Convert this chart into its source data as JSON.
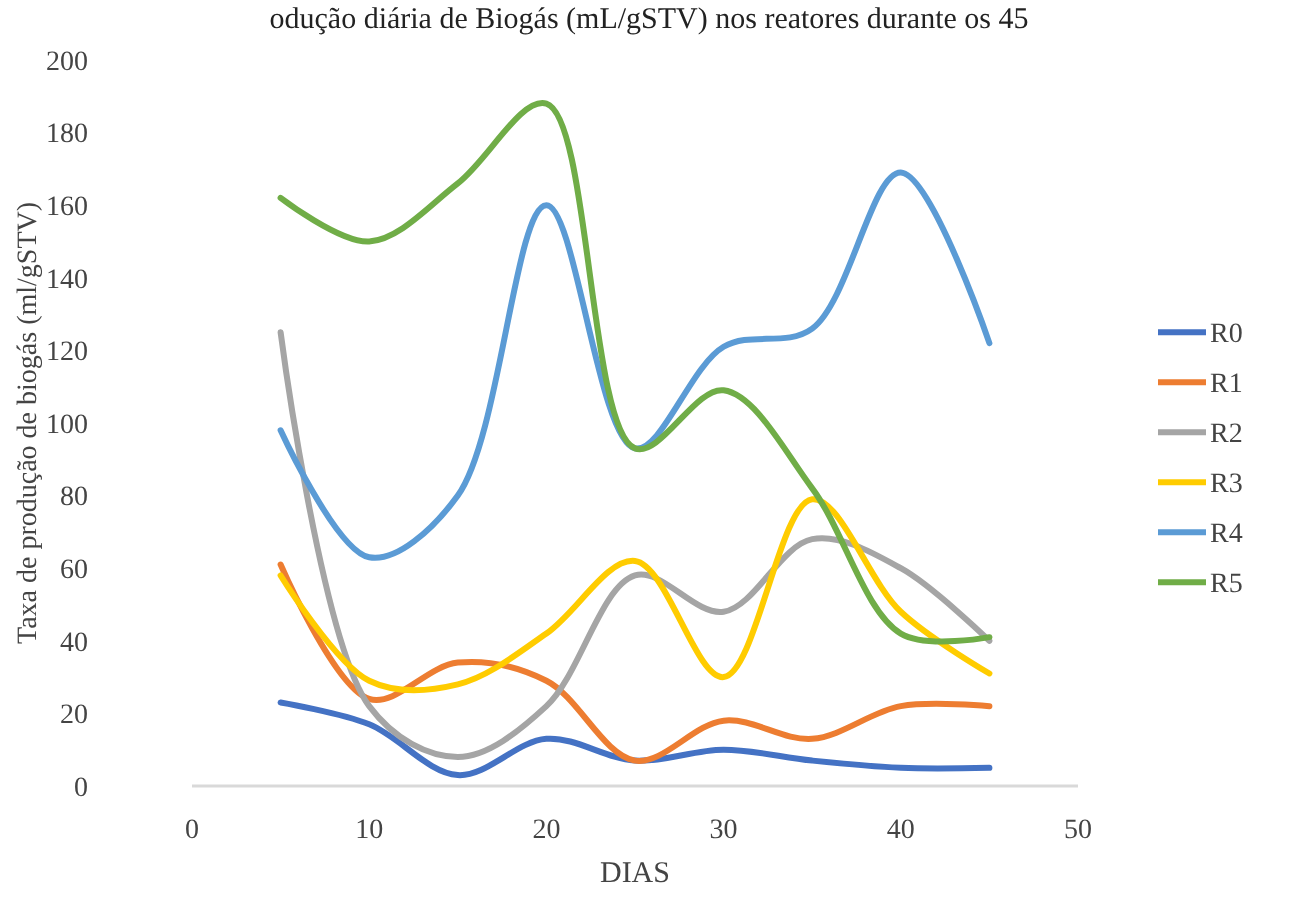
{
  "chart_data": {
    "type": "line",
    "title": "odução diária de Biogás (mL/gSTV) nos reatores durante os 45",
    "xlabel": "DIAS",
    "ylabel": "Taxa de produção de biogás (ml/gSTV)",
    "x": [
      5,
      10,
      15,
      20,
      25,
      30,
      35,
      40,
      45
    ],
    "series": [
      {
        "name": "R0",
        "color": "#4472c4",
        "values": [
          23,
          17,
          3,
          13,
          7,
          10,
          7,
          5,
          5
        ]
      },
      {
        "name": "R1",
        "color": "#ed7d31",
        "values": [
          61,
          24,
          34,
          29,
          7,
          18,
          13,
          22,
          22
        ]
      },
      {
        "name": "R2",
        "color": "#a5a5a5",
        "values": [
          125,
          22,
          8,
          22,
          58,
          48,
          68,
          60,
          40
        ]
      },
      {
        "name": "R3",
        "color": "#ffcc00",
        "values": [
          58,
          29,
          28,
          42,
          62,
          30,
          79,
          48,
          31
        ]
      },
      {
        "name": "R4",
        "color": "#5b9bd5",
        "values": [
          98,
          63,
          80,
          160,
          93,
          121,
          126,
          169,
          122
        ]
      },
      {
        "name": "R5",
        "color": "#70ad47",
        "values": [
          162,
          150,
          166,
          188,
          93,
          109,
          82,
          42,
          41
        ]
      }
    ],
    "xlim": [
      0,
      50
    ],
    "xticks": [
      0,
      10,
      20,
      30,
      40,
      50
    ],
    "ylim": [
      0,
      200
    ],
    "yticks": [
      0,
      20,
      40,
      60,
      80,
      100,
      120,
      140,
      160,
      180,
      200
    ],
    "grid": false,
    "legend": "right",
    "marker": "none",
    "line_style": "solid"
  }
}
